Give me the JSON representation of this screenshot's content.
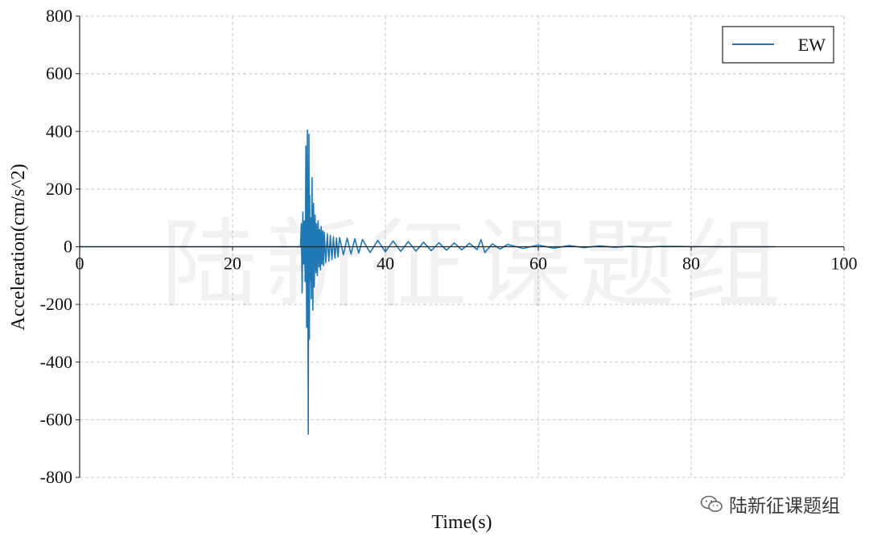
{
  "chart_data": {
    "type": "line",
    "xlabel": "Time(s)",
    "ylabel": "Acceleration(cm/s^2)",
    "xlim": [
      0,
      100
    ],
    "ylim": [
      -800,
      800
    ],
    "xticks": [
      0,
      20,
      40,
      60,
      80,
      100
    ],
    "yticks": [
      800,
      600,
      400,
      200,
      0,
      -200,
      -400,
      -600,
      -800
    ],
    "grid": true,
    "grid_style": "dashed",
    "legend_position": "top-right",
    "series": [
      {
        "name": "EW",
        "color": "#1f77b4",
        "x": [
          0,
          28.9,
          29.0,
          29.1,
          29.2,
          29.3,
          29.4,
          29.5,
          29.6,
          29.7,
          29.8,
          29.9,
          30.0,
          30.05,
          30.1,
          30.15,
          30.2,
          30.3,
          30.4,
          30.5,
          30.6,
          30.7,
          30.8,
          30.9,
          31.0,
          31.1,
          31.2,
          31.3,
          31.4,
          31.5,
          31.6,
          31.7,
          31.8,
          31.9,
          32.0,
          32.2,
          32.4,
          32.6,
          32.8,
          33.0,
          33.2,
          33.4,
          33.6,
          33.8,
          34.0,
          34.5,
          35.0,
          35.5,
          36.0,
          36.5,
          37.0,
          38.0,
          39.0,
          40.0,
          41.0,
          42.0,
          43.0,
          44.0,
          45.0,
          46.0,
          47.0,
          48.0,
          49.0,
          50.0,
          51.0,
          52.0,
          52.5,
          53.0,
          54.0,
          55.0,
          56.0,
          58.0,
          60.0,
          62.0,
          64.0,
          66.0,
          68.0,
          70.0,
          72.0,
          74.0,
          76.0,
          78.0,
          80.0,
          84.0,
          88.0,
          91.0
        ],
        "values": [
          0,
          0,
          80,
          -160,
          120,
          -60,
          90,
          -120,
          350,
          -280,
          405,
          -650,
          390,
          -320,
          180,
          -120,
          100,
          -180,
          240,
          -220,
          150,
          -140,
          110,
          -90,
          80,
          -100,
          90,
          -70,
          60,
          -80,
          70,
          -60,
          55,
          -65,
          50,
          -55,
          45,
          -50,
          40,
          -45,
          35,
          -40,
          30,
          -35,
          32,
          -28,
          30,
          -25,
          28,
          -22,
          25,
          -20,
          22,
          -18,
          20,
          -16,
          18,
          -15,
          16,
          -14,
          14,
          -12,
          13,
          -11,
          12,
          -10,
          25,
          -20,
          10,
          -8,
          8,
          -6,
          6,
          -5,
          4,
          -3,
          3,
          -2,
          2,
          -1.5,
          1,
          1,
          0.5,
          0.3,
          0.2,
          0
        ]
      }
    ]
  },
  "watermark": {
    "big_text": "陆新征课题组",
    "credit_text": "陆新征课题组",
    "credit_icon": "wechat-icon"
  }
}
